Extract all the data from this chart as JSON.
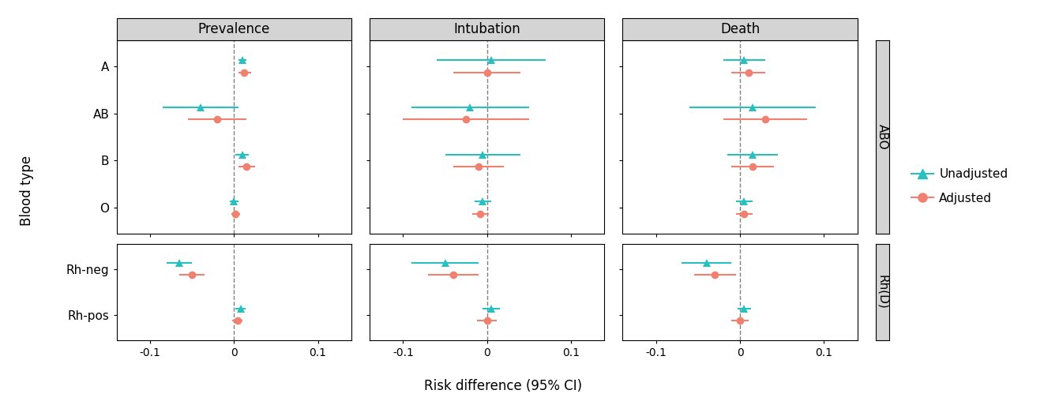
{
  "panels": [
    "Prevalence",
    "Intubation",
    "Death"
  ],
  "abo_groups": [
    "A",
    "AB",
    "B",
    "O"
  ],
  "rh_groups": [
    "Rh-neg",
    "Rh-pos"
  ],
  "abo_unadjusted": {
    "Prevalence": {
      "A": {
        "est": 0.01,
        "lo": 0.005,
        "hi": 0.015
      },
      "AB": {
        "est": -0.04,
        "lo": -0.085,
        "hi": 0.005
      },
      "B": {
        "est": 0.01,
        "lo": 0.002,
        "hi": 0.018
      },
      "O": {
        "est": 0.0,
        "lo": -0.005,
        "hi": 0.005
      }
    },
    "Intubation": {
      "A": {
        "est": 0.005,
        "lo": -0.06,
        "hi": 0.07
      },
      "AB": {
        "est": -0.02,
        "lo": -0.09,
        "hi": 0.05
      },
      "B": {
        "est": -0.005,
        "lo": -0.05,
        "hi": 0.04
      },
      "O": {
        "est": -0.005,
        "lo": -0.015,
        "hi": 0.005
      }
    },
    "Death": {
      "A": {
        "est": 0.005,
        "lo": -0.02,
        "hi": 0.03
      },
      "AB": {
        "est": 0.015,
        "lo": -0.06,
        "hi": 0.09
      },
      "B": {
        "est": 0.015,
        "lo": -0.015,
        "hi": 0.045
      },
      "O": {
        "est": 0.005,
        "lo": -0.005,
        "hi": 0.015
      }
    }
  },
  "abo_adjusted": {
    "Prevalence": {
      "A": {
        "est": 0.012,
        "lo": 0.005,
        "hi": 0.02
      },
      "AB": {
        "est": -0.02,
        "lo": -0.055,
        "hi": 0.015
      },
      "B": {
        "est": 0.015,
        "lo": 0.005,
        "hi": 0.025
      },
      "O": {
        "est": 0.002,
        "lo": -0.003,
        "hi": 0.007
      }
    },
    "Intubation": {
      "A": {
        "est": 0.0,
        "lo": -0.04,
        "hi": 0.04
      },
      "AB": {
        "est": -0.025,
        "lo": -0.1,
        "hi": 0.05
      },
      "B": {
        "est": -0.01,
        "lo": -0.04,
        "hi": 0.02
      },
      "O": {
        "est": -0.008,
        "lo": -0.018,
        "hi": 0.002
      }
    },
    "Death": {
      "A": {
        "est": 0.01,
        "lo": -0.01,
        "hi": 0.03
      },
      "AB": {
        "est": 0.03,
        "lo": -0.02,
        "hi": 0.08
      },
      "B": {
        "est": 0.015,
        "lo": -0.01,
        "hi": 0.04
      },
      "O": {
        "est": 0.005,
        "lo": -0.005,
        "hi": 0.015
      }
    }
  },
  "rh_unadjusted": {
    "Prevalence": {
      "Rh-neg": {
        "est": -0.065,
        "lo": -0.08,
        "hi": -0.05
      },
      "Rh-pos": {
        "est": 0.008,
        "lo": 0.002,
        "hi": 0.014
      }
    },
    "Intubation": {
      "Rh-neg": {
        "est": -0.05,
        "lo": -0.09,
        "hi": -0.01
      },
      "Rh-pos": {
        "est": 0.005,
        "lo": -0.005,
        "hi": 0.015
      }
    },
    "Death": {
      "Rh-neg": {
        "est": -0.04,
        "lo": -0.07,
        "hi": -0.01
      },
      "Rh-pos": {
        "est": 0.005,
        "lo": -0.003,
        "hi": 0.013
      }
    }
  },
  "rh_adjusted": {
    "Prevalence": {
      "Rh-neg": {
        "est": -0.05,
        "lo": -0.065,
        "hi": -0.035
      },
      "Rh-pos": {
        "est": 0.004,
        "lo": -0.002,
        "hi": 0.01
      }
    },
    "Intubation": {
      "Rh-neg": {
        "est": -0.04,
        "lo": -0.07,
        "hi": -0.01
      },
      "Rh-pos": {
        "est": 0.0,
        "lo": -0.012,
        "hi": 0.012
      }
    },
    "Death": {
      "Rh-neg": {
        "est": -0.03,
        "lo": -0.055,
        "hi": -0.005
      },
      "Rh-pos": {
        "est": 0.0,
        "lo": -0.01,
        "hi": 0.01
      }
    }
  },
  "color_unadjusted": "#29bfbf",
  "color_adjusted": "#f08070",
  "xlim": [
    -0.14,
    0.14
  ],
  "xticks": [
    -0.1,
    0.0,
    0.1
  ],
  "xlabel": "Risk difference (95% CI)",
  "ylabel": "Blood type",
  "strip_color": "#d4d4d4",
  "panel_bg": "#ffffff",
  "fig_bg": "#ffffff"
}
